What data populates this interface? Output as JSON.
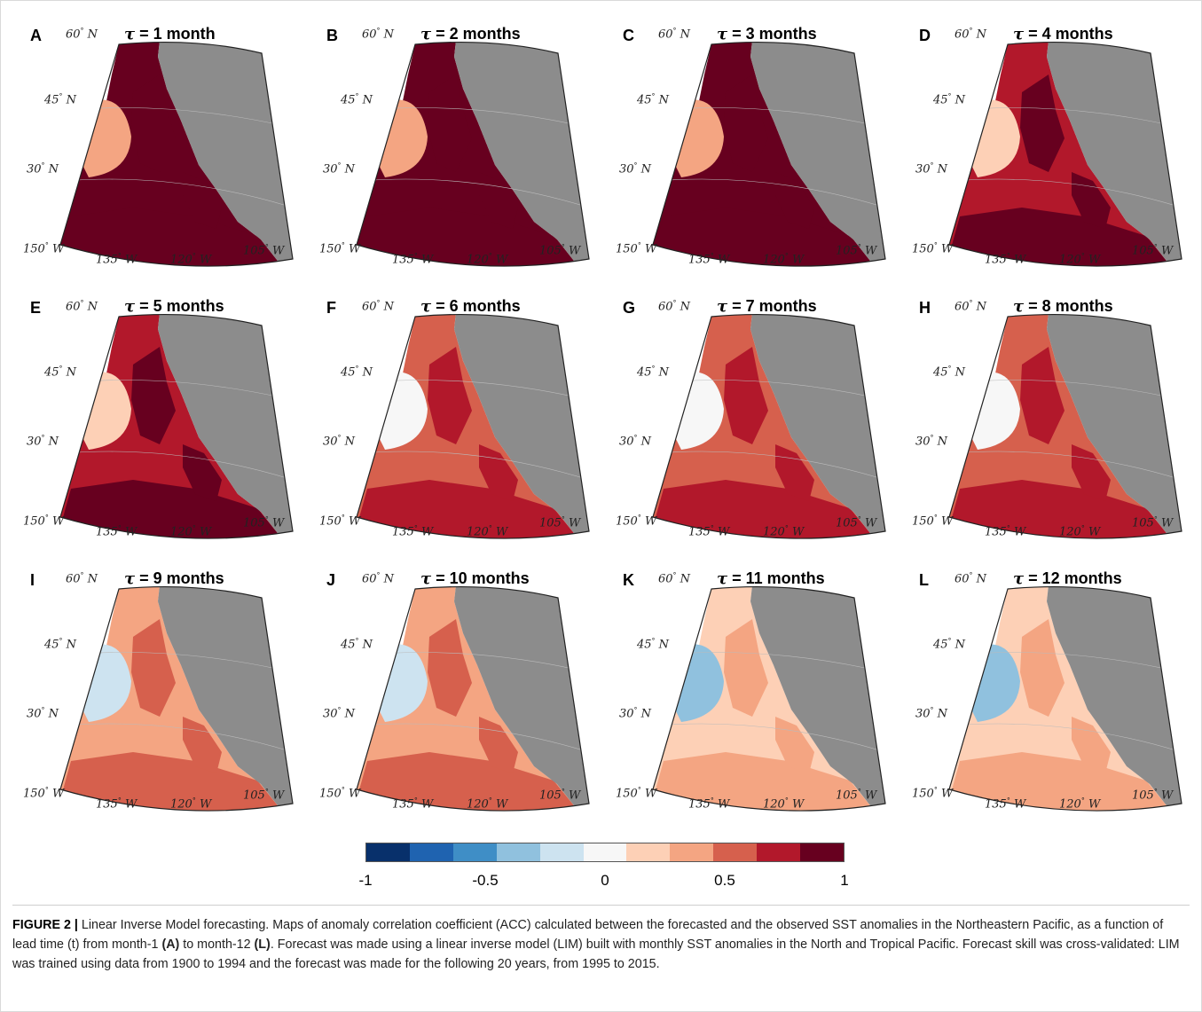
{
  "figure": {
    "panels": [
      {
        "letter": "A",
        "title_rest": " = 1 month",
        "level": 1
      },
      {
        "letter": "B",
        "title_rest": " = 2 months",
        "level": 2
      },
      {
        "letter": "C",
        "title_rest": " = 3 months",
        "level": 3
      },
      {
        "letter": "D",
        "title_rest": " = 4 months",
        "level": 4
      },
      {
        "letter": "E",
        "title_rest": " = 5 months",
        "level": 5
      },
      {
        "letter": "F",
        "title_rest": " = 6 months",
        "level": 6
      },
      {
        "letter": "G",
        "title_rest": " = 7 months",
        "level": 7
      },
      {
        "letter": "H",
        "title_rest": " = 8 months",
        "level": 8
      },
      {
        "letter": "I",
        "title_rest": " = 9 months",
        "level": 9
      },
      {
        "letter": "J",
        "title_rest": " = 10 months",
        "level": 10
      },
      {
        "letter": "K",
        "title_rest": " = 11 months",
        "level": 11
      },
      {
        "letter": "L",
        "title_rest": " = 12 months",
        "level": 12
      }
    ],
    "tau_symbol": "τ",
    "lat_labels": [
      "60",
      "45",
      "30"
    ],
    "lat_suffix": "N",
    "lon_labels": [
      "150",
      "135",
      "120",
      "105"
    ],
    "lon_suffix": "W",
    "degree": "°",
    "land_color": "#8c8c8c",
    "colorbar": {
      "colors": [
        "#08306b",
        "#1f63b0",
        "#3f8ec6",
        "#90c1de",
        "#cde3f0",
        "#f7f7f7",
        "#fdd0b6",
        "#f4a582",
        "#d6604d",
        "#b2182b",
        "#67001f"
      ],
      "ticks": [
        "-1",
        "-0.5",
        "0",
        "0.5",
        "1"
      ]
    }
  },
  "caption": {
    "label": "FIGURE 2 |",
    "part1": " Linear Inverse Model forecasting. Maps of anomaly correlation coefficient (ACC) calculated between the forecasted and the observed SST anomalies in the Northeastern Pacific, as a function of lead time (t) from month-1 ",
    "ref_a": "(A)",
    "part2": " to month-12 ",
    "ref_l": "(L)",
    "part3": ". Forecast was made using a linear inverse model (LIM) built with monthly SST anomalies in the North and Tropical Pacific. Forecast skill was cross-validated: LIM was trained using data from 1900 to 1994 and the forecast was made for the following 20 years, from 1995 to 2015."
  }
}
